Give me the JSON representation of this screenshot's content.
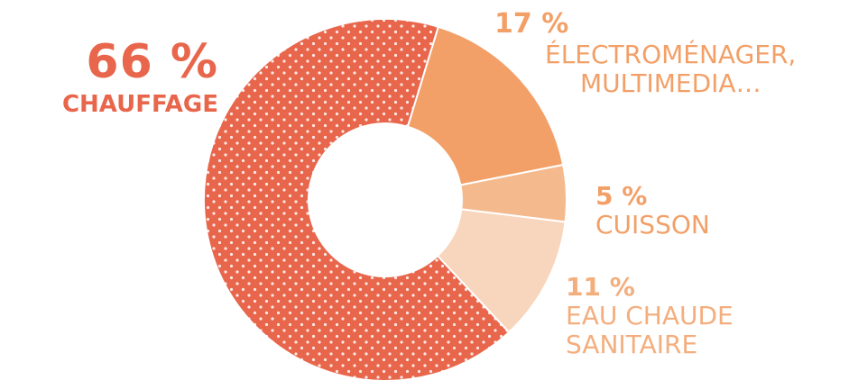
{
  "chart_data": {
    "type": "pie",
    "style": "donut",
    "categories": [
      "CHAUFFAGE",
      "ÉLECTROMÉNAGER, MULTIMEDIA…",
      "CUISSON",
      "EAU CHAUDE SANITAIRE"
    ],
    "values": [
      66,
      17,
      5,
      11
    ],
    "unit": "%",
    "colors": [
      "#e8664b",
      "#f2a068",
      "#f4ba8e",
      "#f8d6bd"
    ],
    "pattern": "dotted-white-on-largest-slice",
    "labels": [
      {
        "value_text": "66 %",
        "name_lines": [
          "CHAUFFAGE"
        ]
      },
      {
        "value_text": "17 %",
        "name_lines": [
          "ÉLECTROMÉNAGER,",
          "MULTIMEDIA…"
        ]
      },
      {
        "value_text": "5 %",
        "name_lines": [
          "CUISSON"
        ]
      },
      {
        "value_text": "11 %",
        "name_lines": [
          "EAU CHAUDE",
          "SANITAIRE"
        ]
      }
    ]
  }
}
